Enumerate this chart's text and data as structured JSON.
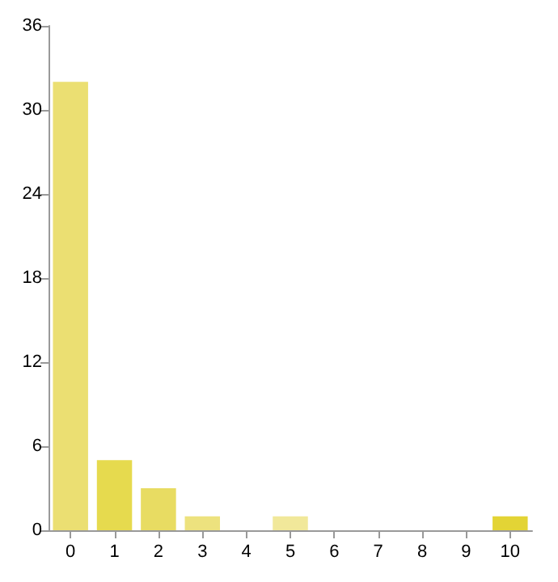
{
  "chart_data": {
    "type": "bar",
    "categories": [
      "0",
      "1",
      "2",
      "3",
      "4",
      "5",
      "6",
      "7",
      "8",
      "9",
      "10"
    ],
    "values": [
      32,
      5,
      3,
      1,
      0,
      1,
      0,
      0,
      0,
      0,
      1
    ],
    "colors": [
      "#ebdf72",
      "#e6da4e",
      "#e8dc62",
      "#ede27e",
      "#ebdf72",
      "#f1e89a",
      "#ebdf72",
      "#ebdf72",
      "#ebdf72",
      "#ebdf72",
      "#e3d435"
    ],
    "ylim": [
      0,
      36
    ],
    "yticks": [
      0,
      6,
      12,
      18,
      24,
      30,
      36
    ],
    "grid": false
  }
}
